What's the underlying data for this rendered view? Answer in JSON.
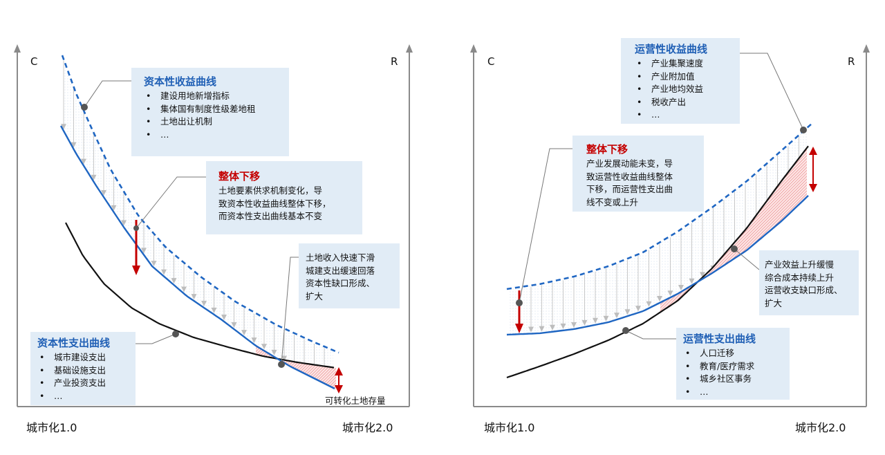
{
  "left": {
    "axis_left_label": "C",
    "axis_right_label": "R",
    "x_start_label": "城市化1.0",
    "x_end_label": "城市化2.0",
    "capital_income_box": {
      "title": "资本性收益曲线",
      "items": [
        "建设用地新增指标",
        "集体国有制度性级差地租",
        "土地出让机制",
        "…"
      ]
    },
    "shift_box": {
      "title": "整体下移",
      "lines": [
        "土地要素供求机制变化，导",
        "致资本性收益曲线整体下移，",
        "而资本性支出曲线基本不变"
      ]
    },
    "gap_box": {
      "lines": [
        "土地收入快速下滑",
        "城建支出缓速回落",
        "资本性缺口形成、",
        "扩大"
      ]
    },
    "capital_expense_box": {
      "title": "资本性支出曲线",
      "items": [
        "城市建设支出",
        "基础设施支出",
        "产业投资支出",
        "…"
      ]
    },
    "land_stock_label": "可转化土地存量"
  },
  "right": {
    "axis_left_label": "C",
    "axis_right_label": "R",
    "x_start_label": "城市化1.0",
    "x_end_label": "城市化2.0",
    "operating_income_box": {
      "title": "运营性收益曲线",
      "items": [
        "产业集聚速度",
        "产业附加值",
        "产业地均效益",
        "税收产出",
        "…"
      ]
    },
    "shift_box": {
      "title": "整体下移",
      "lines": [
        "产业发展动能未变，导",
        "致运营性收益曲线整体",
        "下移，而运营性支出曲",
        "线不变或上升"
      ]
    },
    "gap_box": {
      "lines": [
        "产业效益上升缓慢",
        "综合成本持续上升",
        "运营收支缺口形成、",
        "扩大"
      ]
    },
    "operating_expense_box": {
      "title": "运营性支出曲线",
      "items": [
        "人口迁移",
        "教育/医疗需求",
        "城乡社区事务",
        "…"
      ]
    }
  },
  "colors": {
    "blue": "#1f66c2",
    "black": "#111111",
    "red": "#c40000",
    "gray_arrow": "#bdbdbd",
    "axis": "#808080",
    "box_bg": "#dde9f5"
  }
}
